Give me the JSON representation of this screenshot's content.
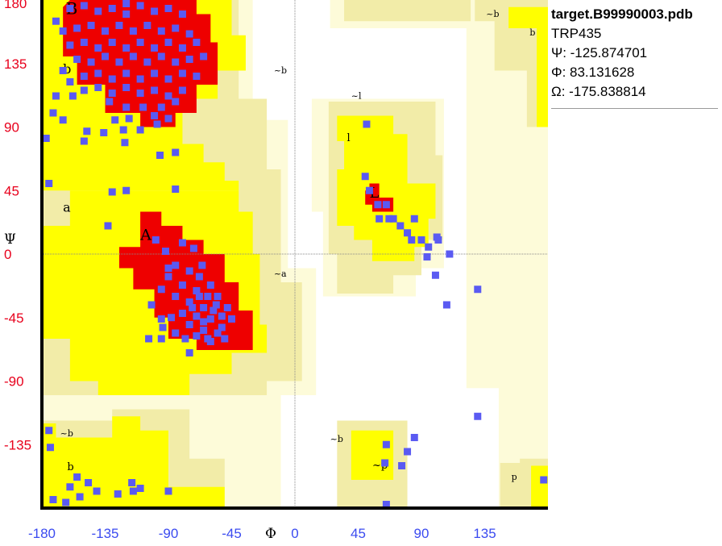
{
  "info": {
    "file": "target.B99990003.pdb",
    "residue": "TRP435",
    "psi": "Ψ: -125.874701",
    "phi": "Φ: 83.131628",
    "omega": "Ω: -175.838814"
  },
  "colors": {
    "core": "#ee0000",
    "allowed": "#ffff00",
    "generous": "#f2eca8",
    "outer": "#fdfbd9",
    "point": "#5a5af2",
    "tick_y": "#e8001c",
    "tick_x": "#3b4bf0"
  },
  "chart_data": {
    "type": "scatter",
    "xlabel": "Φ",
    "ylabel": "Ψ",
    "xlim": [
      -180,
      180
    ],
    "ylim": [
      -180,
      180
    ],
    "grid": "dotted lines at Φ=0 and Ψ=0",
    "x_ticks": [
      "-180",
      "-135",
      "-90",
      "-45",
      "0",
      "45",
      "90",
      "135"
    ],
    "y_ticks": [
      "180",
      "135",
      "90",
      "45",
      "0",
      "-45",
      "-90",
      "-135"
    ],
    "region_labels": [
      "B",
      "b",
      "~b",
      "~b",
      "b",
      "a",
      "A",
      "~a",
      "~l",
      "l",
      "L",
      "~b",
      "b",
      "~b",
      "~p",
      "p"
    ],
    "points": [
      [
        -170,
        165
      ],
      [
        -160,
        174
      ],
      [
        -150,
        176
      ],
      [
        -140,
        172
      ],
      [
        -130,
        174
      ],
      [
        -120,
        170
      ],
      [
        -110,
        176
      ],
      [
        -100,
        172
      ],
      [
        -90,
        174
      ],
      [
        -80,
        170
      ],
      [
        -165,
        158
      ],
      [
        -155,
        160
      ],
      [
        -145,
        162
      ],
      [
        -135,
        158
      ],
      [
        -125,
        162
      ],
      [
        -115,
        158
      ],
      [
        -105,
        162
      ],
      [
        -95,
        158
      ],
      [
        -85,
        160
      ],
      [
        -75,
        156
      ],
      [
        -160,
        148
      ],
      [
        -150,
        150
      ],
      [
        -140,
        146
      ],
      [
        -130,
        150
      ],
      [
        -120,
        146
      ],
      [
        -110,
        150
      ],
      [
        -100,
        146
      ],
      [
        -90,
        150
      ],
      [
        -80,
        146
      ],
      [
        -70,
        150
      ],
      [
        -155,
        138
      ],
      [
        -145,
        136
      ],
      [
        -135,
        140
      ],
      [
        -125,
        136
      ],
      [
        -115,
        140
      ],
      [
        -105,
        136
      ],
      [
        -95,
        140
      ],
      [
        -85,
        136
      ],
      [
        -75,
        138
      ],
      [
        -65,
        140
      ],
      [
        -150,
        126
      ],
      [
        -140,
        128
      ],
      [
        -130,
        124
      ],
      [
        -120,
        128
      ],
      [
        -110,
        124
      ],
      [
        -100,
        128
      ],
      [
        -90,
        124
      ],
      [
        -80,
        128
      ],
      [
        -70,
        126
      ],
      [
        -150,
        116
      ],
      [
        -140,
        118
      ],
      [
        -130,
        114
      ],
      [
        -120,
        118
      ],
      [
        -110,
        114
      ],
      [
        -100,
        116
      ],
      [
        -90,
        112
      ],
      [
        -80,
        116
      ],
      [
        -160,
        122
      ],
      [
        -165,
        130
      ],
      [
        -170,
        112
      ],
      [
        -172,
        100
      ],
      [
        -158,
        112
      ],
      [
        -132,
        108
      ],
      [
        -120,
        104
      ],
      [
        -108,
        104
      ],
      [
        -95,
        104
      ],
      [
        -85,
        108
      ],
      [
        -128,
        95
      ],
      [
        -118,
        96
      ],
      [
        -100,
        98
      ],
      [
        -90,
        96
      ],
      [
        -136,
        86
      ],
      [
        -122,
        88
      ],
      [
        -110,
        88
      ],
      [
        -98,
        92
      ],
      [
        -165,
        95
      ],
      [
        -177,
        82
      ],
      [
        -148,
        87
      ],
      [
        -175,
        50
      ],
      [
        -150,
        80
      ],
      [
        -96,
        70
      ],
      [
        -85,
        72
      ],
      [
        -121,
        79
      ],
      [
        -130,
        44
      ],
      [
        -120,
        45
      ],
      [
        -133,
        20
      ],
      [
        -99,
        10
      ],
      [
        -92,
        2
      ],
      [
        -80,
        8
      ],
      [
        -72,
        4
      ],
      [
        -85,
        -8
      ],
      [
        -75,
        -12
      ],
      [
        -68,
        -16
      ],
      [
        -90,
        -16
      ],
      [
        -80,
        -22
      ],
      [
        -70,
        -26
      ],
      [
        -62,
        -30
      ],
      [
        -85,
        -30
      ],
      [
        -75,
        -34
      ],
      [
        -65,
        -38
      ],
      [
        -56,
        -36
      ],
      [
        -80,
        -42
      ],
      [
        -70,
        -44
      ],
      [
        -60,
        -46
      ],
      [
        -52,
        -44
      ],
      [
        -75,
        -50
      ],
      [
        -65,
        -54
      ],
      [
        -55,
        -56
      ],
      [
        -70,
        -58
      ],
      [
        -60,
        -62
      ],
      [
        -50,
        -60
      ],
      [
        -95,
        -46
      ],
      [
        -85,
        -56
      ],
      [
        -95,
        -60
      ],
      [
        -104,
        -60
      ],
      [
        -90,
        -10
      ],
      [
        -95,
        -25
      ],
      [
        -102,
        -36
      ],
      [
        -66,
        -8
      ],
      [
        -60,
        -22
      ],
      [
        -55,
        -30
      ],
      [
        -48,
        -38
      ],
      [
        -45,
        -46
      ],
      [
        -58,
        -40
      ],
      [
        -65,
        -48
      ],
      [
        -73,
        -38
      ],
      [
        -68,
        -30
      ],
      [
        -78,
        -60
      ],
      [
        -88,
        -45
      ],
      [
        -94,
        -52
      ],
      [
        -52,
        -52
      ],
      [
        -62,
        -60
      ],
      [
        -75,
        -70
      ],
      [
        -85,
        46
      ],
      [
        -120,
        200
      ],
      [
        51,
        92
      ],
      [
        50,
        55
      ],
      [
        53,
        45
      ],
      [
        59,
        35
      ],
      [
        65,
        35
      ],
      [
        70,
        25
      ],
      [
        75,
        20
      ],
      [
        80,
        15
      ],
      [
        85,
        25
      ],
      [
        90,
        10
      ],
      [
        95,
        5
      ],
      [
        101,
        12
      ],
      [
        102,
        10
      ],
      [
        94,
        -2
      ],
      [
        60,
        25
      ],
      [
        67,
        25
      ],
      [
        83,
        10
      ],
      [
        110,
        0
      ],
      [
        100,
        -15
      ],
      [
        130,
        -25
      ],
      [
        108,
        -36
      ],
      [
        130,
        -115
      ],
      [
        65,
        -135
      ],
      [
        80,
        -140
      ],
      [
        85,
        -130
      ],
      [
        76,
        -150
      ],
      [
        64,
        -148
      ],
      [
        -175,
        -125
      ],
      [
        -174,
        -137
      ],
      [
        -160,
        -165
      ],
      [
        -155,
        -158
      ],
      [
        -147,
        -162
      ],
      [
        -141,
        -168
      ],
      [
        -126,
        -170
      ],
      [
        -115,
        -168
      ],
      [
        -116,
        -162
      ],
      [
        -110,
        -166
      ],
      [
        -90,
        -168
      ],
      [
        -172,
        -174
      ],
      [
        -163,
        -176
      ],
      [
        -153,
        -172
      ],
      [
        65,
        -178
      ],
      [
        177,
        -160
      ]
    ]
  }
}
